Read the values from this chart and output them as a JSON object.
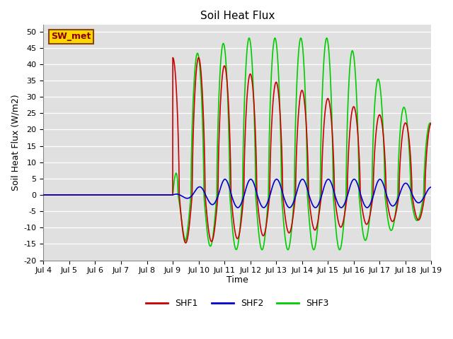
{
  "title": "Soil Heat Flux",
  "ylabel": "Soil Heat Flux (W/m2)",
  "xlabel": "Time",
  "ylim": [
    -20,
    52
  ],
  "yticks": [
    -20,
    -15,
    -10,
    -5,
    0,
    5,
    10,
    15,
    20,
    25,
    30,
    35,
    40,
    45,
    50
  ],
  "xtick_labels": [
    "Jul 4",
    "Jul 5",
    "Jul 6",
    "Jul 7",
    "Jul 8",
    "Jul 9",
    "Jul 10",
    "Jul 11",
    "Jul 12",
    "Jul 13",
    "Jul 14",
    "Jul 15",
    "Jul 16",
    "Jul 17",
    "Jul 18",
    "Jul 19"
  ],
  "annotation_text": "SW_met",
  "annotation_color": "#8B0000",
  "annotation_bg": "#FFD700",
  "shf1_color": "#CC0000",
  "shf2_color": "#0000CC",
  "shf3_color": "#00CC00",
  "bg_color": "#E0E0E0",
  "legend_labels": [
    "SHF1",
    "SHF2",
    "SHF3"
  ]
}
